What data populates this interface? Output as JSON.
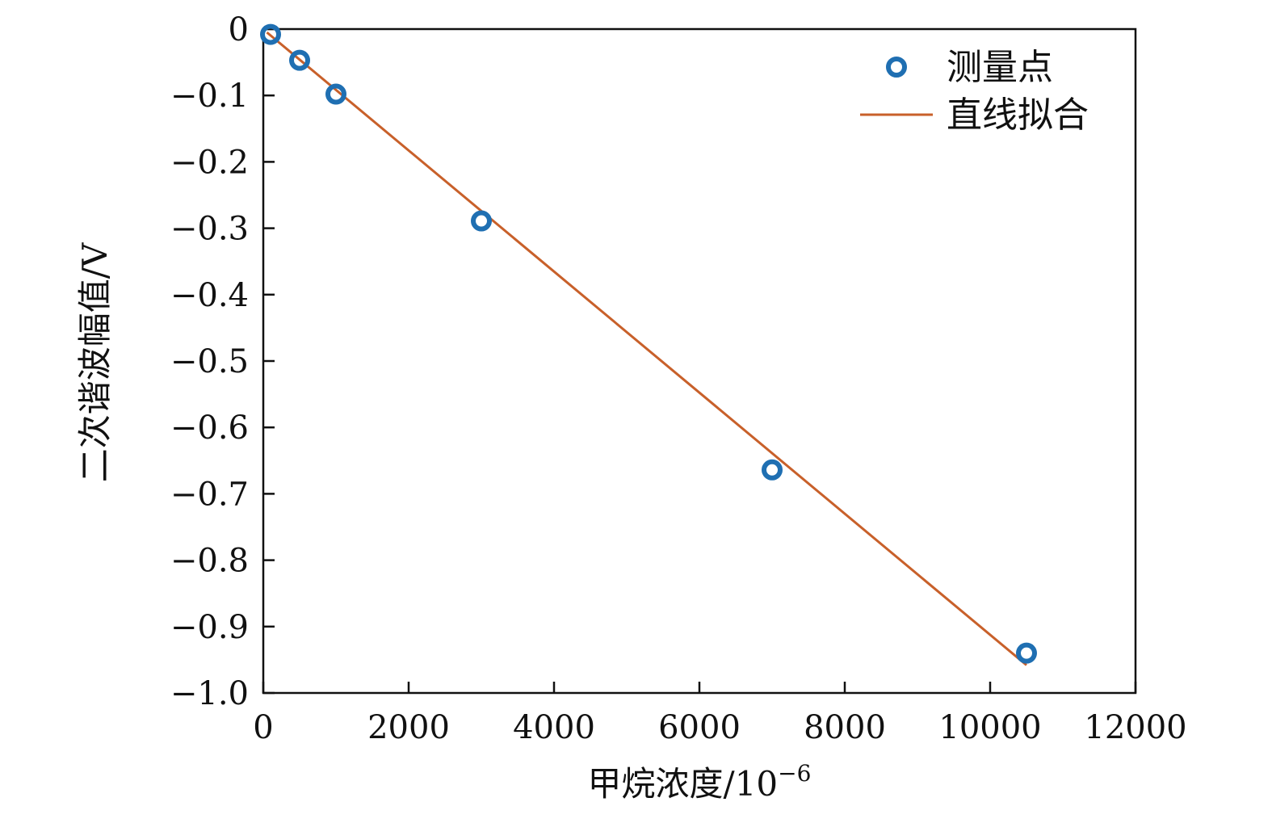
{
  "chart_data": {
    "type": "scatter",
    "title": "",
    "xlabel": "甲烷浓度/10",
    "xlabel_exponent": "−6",
    "ylabel": "二次谐波幅值/V",
    "xlim": [
      0,
      12000
    ],
    "ylim": [
      -1.0,
      0
    ],
    "x_ticks": [
      0,
      2000,
      4000,
      6000,
      8000,
      10000,
      12000
    ],
    "x_tick_labels": [
      "0",
      "2000",
      "4000",
      "6000",
      "8000",
      "10000",
      "12000"
    ],
    "y_ticks": [
      0,
      -0.1,
      -0.2,
      -0.3,
      -0.4,
      -0.5,
      -0.6,
      -0.7,
      -0.8,
      -0.9,
      -1.0
    ],
    "y_tick_labels": [
      "0",
      "−0.1",
      "−0.2",
      "−0.3",
      "−0.4",
      "−0.5",
      "−0.6",
      "−0.7",
      "−0.8",
      "−0.9",
      "−1.0"
    ],
    "grid": false,
    "legend_position": "top-right",
    "series": [
      {
        "name": "测量点",
        "kind": "scatter",
        "marker": "open-circle",
        "color": "#1f6fb2",
        "x": [
          100,
          500,
          1000,
          3000,
          7000,
          10500
        ],
        "y": [
          -0.008,
          -0.047,
          -0.098,
          -0.289,
          -0.664,
          -0.94
        ]
      },
      {
        "name": "直线拟合",
        "kind": "line",
        "color": "#c8602a",
        "x": [
          50,
          10500
        ],
        "y": [
          -0.005,
          -0.958
        ]
      }
    ]
  }
}
